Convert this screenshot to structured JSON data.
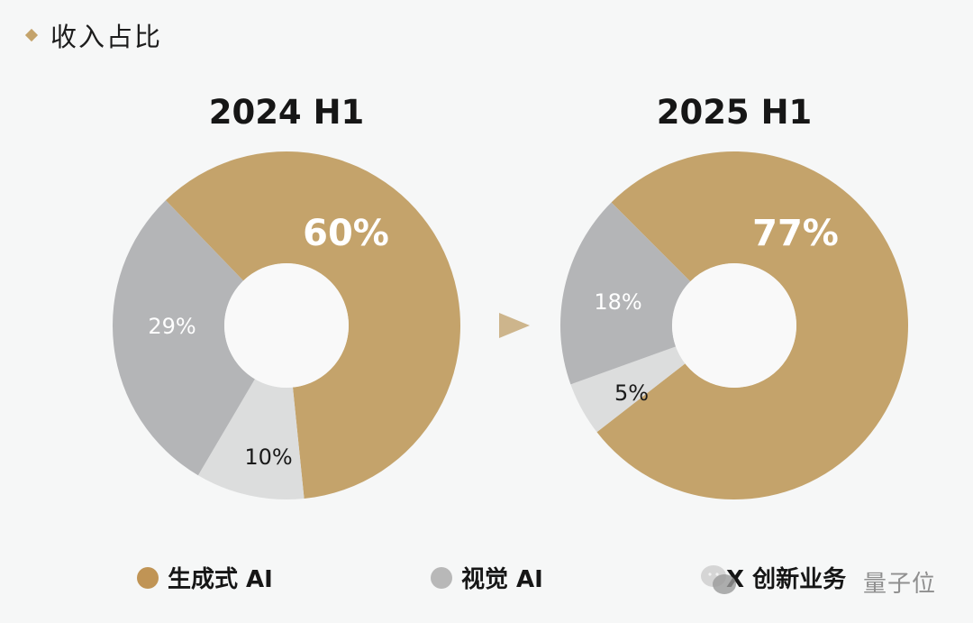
{
  "header": {
    "title": "收入占比",
    "bullet_icon": "diamond-icon"
  },
  "transition_icon": "arrow-right-icon",
  "colors": {
    "generative_ai": "#c4a36b",
    "vision_ai": "#b4b5b7",
    "x_innovation": "#dcdddd",
    "background": "#f6f7f7",
    "hole": "#f9f9f9"
  },
  "charts": [
    {
      "title": "2024 H1",
      "slices": [
        {
          "name": "生成式 AI",
          "value": 60,
          "label": "60%"
        },
        {
          "name": "X 创新业务",
          "value": 10,
          "label": "10%"
        },
        {
          "name": "视觉 AI",
          "value": 29,
          "label": "29%"
        }
      ]
    },
    {
      "title": "2025 H1",
      "slices": [
        {
          "name": "生成式 AI",
          "value": 77,
          "label": "77%"
        },
        {
          "name": "X 创新业务",
          "value": 5,
          "label": "5%"
        },
        {
          "name": "视觉 AI",
          "value": 18,
          "label": "18%"
        }
      ]
    }
  ],
  "legend": [
    {
      "label": "生成式 AI",
      "color": "#c4a36b"
    },
    {
      "label": "视觉 AI",
      "color": "#b4b5b7"
    },
    {
      "label": "X 创新业务",
      "color": "#dcdddd"
    }
  ],
  "watermark": {
    "text": "量子位",
    "icon": "wechat-icon"
  },
  "chart_data": [
    {
      "type": "pie",
      "title": "2024 H1",
      "categories": [
        "生成式 AI",
        "视觉 AI",
        "X 创新业务"
      ],
      "values": [
        60,
        29,
        10
      ],
      "unit": "%",
      "donut": true,
      "legend_position": "bottom"
    },
    {
      "type": "pie",
      "title": "2025 H1",
      "categories": [
        "生成式 AI",
        "视觉 AI",
        "X 创新业务"
      ],
      "values": [
        77,
        18,
        5
      ],
      "unit": "%",
      "donut": true,
      "legend_position": "bottom"
    }
  ]
}
